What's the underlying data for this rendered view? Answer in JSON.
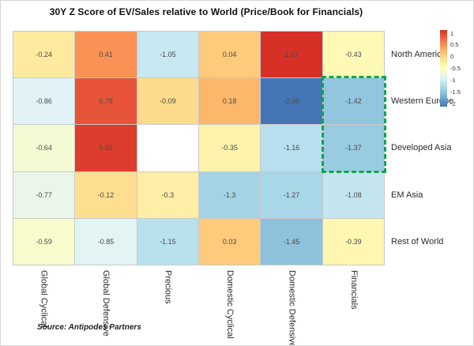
{
  "title": "30Y Z Score of EV/Sales relative to World (Price/Book for Financials)",
  "source_note": "Source:  Antipodes Partners",
  "chart_data": {
    "type": "heatmap",
    "title": "30Y Z Score of EV/Sales relative to World (Price/Book for Financials)",
    "columns": [
      "Global Cyclical",
      "Global Defensive",
      "Precious",
      "Domestic Cyclical",
      "Domestic Defensive",
      "Financials"
    ],
    "rows": [
      "North America",
      "Western Europe",
      "Developed Asia",
      "EM Asia",
      "Rest of World"
    ],
    "values": [
      [
        -0.24,
        0.41,
        -1.05,
        0.04,
        1.17,
        -0.43
      ],
      [
        -0.86,
        0.78,
        -0.09,
        0.18,
        -2.06,
        -1.42
      ],
      [
        -0.64,
        0.92,
        null,
        -0.35,
        -1.16,
        -1.37
      ],
      [
        -0.77,
        -0.12,
        -0.3,
        -1.3,
        -1.27,
        -1.08
      ],
      [
        -0.59,
        -0.85,
        -1.15,
        0.03,
        -1.45,
        -0.39
      ]
    ],
    "null_color": "#ffffff",
    "colormap": {
      "domain": [
        -2,
        1
      ],
      "stops": [
        "#4575b4",
        "#74add1",
        "#abd9e9",
        "#e0f3f8",
        "#ffffbf",
        "#fee090",
        "#fdae61",
        "#f46d43",
        "#d73027"
      ]
    },
    "colorbar": {
      "tick_labels": [
        "1",
        "0.5",
        "0",
        "-0.5",
        "-1",
        "-1.5",
        "-2"
      ],
      "position": "right"
    },
    "grid_line_color": "#c9c9c9",
    "highlight": {
      "shape": "dashed-rect",
      "color": "#0aa74f",
      "col_start": 5,
      "col_end": 6,
      "row_start": 1,
      "row_end": 3
    },
    "legend": "colorbar",
    "grid": true
  }
}
